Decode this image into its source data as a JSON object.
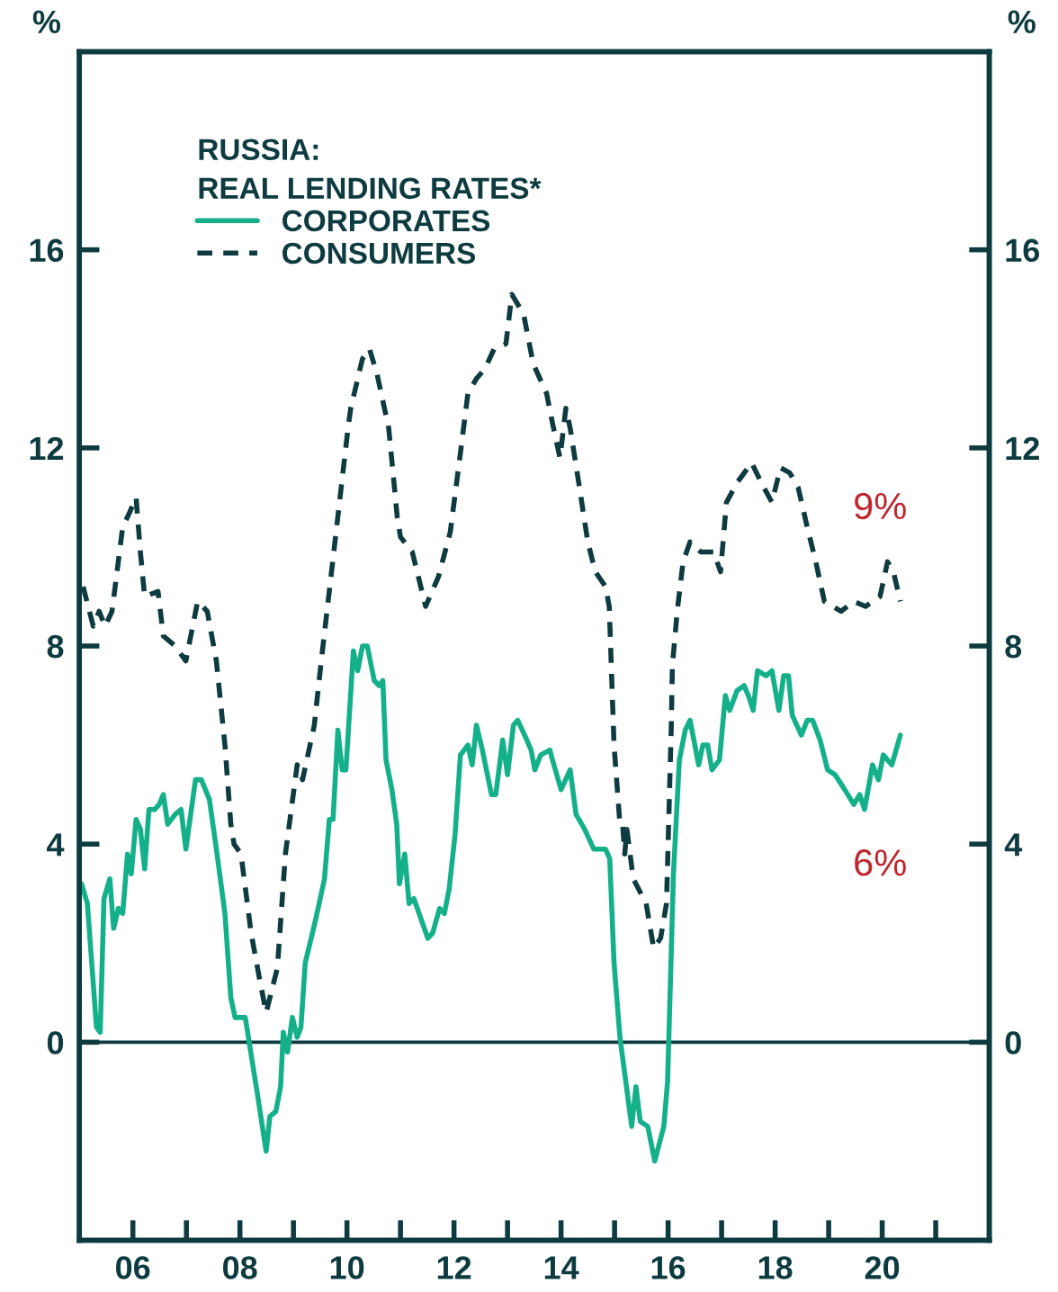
{
  "chart_data": {
    "type": "line",
    "legend_title": "RUSSIA:\nREAL LENDING RATES*",
    "ylabel": "%",
    "y2label": "%",
    "xlim": [
      2005,
      2022
    ],
    "ylim": [
      -4,
      20
    ],
    "y2lim": [
      -4,
      20
    ],
    "xticks": [
      {
        "value": 2006,
        "label": "06"
      },
      {
        "value": 2007,
        "label": null
      },
      {
        "value": 2008,
        "label": "08"
      },
      {
        "value": 2009,
        "label": null
      },
      {
        "value": 2010,
        "label": "10"
      },
      {
        "value": 2011,
        "label": null
      },
      {
        "value": 2012,
        "label": "12"
      },
      {
        "value": 2013,
        "label": null
      },
      {
        "value": 2014,
        "label": "14"
      },
      {
        "value": 2015,
        "label": null
      },
      {
        "value": 2016,
        "label": "16"
      },
      {
        "value": 2017,
        "label": null
      },
      {
        "value": 2018,
        "label": "18"
      },
      {
        "value": 2019,
        "label": null
      },
      {
        "value": 2020,
        "label": "20"
      },
      {
        "value": 2021,
        "label": null
      }
    ],
    "yticks": [
      0,
      4,
      8,
      12,
      16
    ],
    "y2ticks": [
      0,
      4,
      8,
      12,
      16
    ],
    "ref_lines": [
      {
        "axis": "y",
        "value": 0,
        "color": "#0d3b3f"
      }
    ],
    "annotations": [
      "9%",
      "6%"
    ],
    "legend": "top left",
    "grid": false,
    "series": [
      {
        "name": "CORPORATES",
        "color": "#14b08a",
        "line_style": "solid",
        "x": [
          2005.04,
          2005.15,
          2005.32,
          2005.39,
          2005.46,
          2005.57,
          2005.64,
          2005.73,
          2005.81,
          2005.9,
          2005.97,
          2006.06,
          2006.14,
          2006.22,
          2006.3,
          2006.41,
          2006.49,
          2006.57,
          2006.65,
          2006.79,
          2006.9,
          2006.99,
          2007.17,
          2007.28,
          2007.43,
          2007.56,
          2007.72,
          2007.83,
          2007.91,
          2008.1,
          2008.32,
          2008.49,
          2008.56,
          2008.67,
          2008.76,
          2008.81,
          2008.89,
          2008.98,
          2009.07,
          2009.14,
          2009.22,
          2009.42,
          2009.58,
          2009.67,
          2009.74,
          2009.83,
          2009.91,
          2009.98,
          2010.12,
          2010.2,
          2010.29,
          2010.38,
          2010.51,
          2010.6,
          2010.67,
          2010.73,
          2010.84,
          2010.93,
          2010.98,
          2011.08,
          2011.16,
          2011.25,
          2011.38,
          2011.51,
          2011.6,
          2011.73,
          2011.82,
          2011.91,
          2012.02,
          2012.12,
          2012.26,
          2012.34,
          2012.42,
          2012.53,
          2012.7,
          2012.78,
          2012.91,
          2013.0,
          2013.11,
          2013.19,
          2013.32,
          2013.44,
          2013.51,
          2013.62,
          2013.79,
          2013.84,
          2014.0,
          2014.17,
          2014.28,
          2014.44,
          2014.61,
          2014.66,
          2014.83,
          2014.91,
          2014.99,
          2015.1,
          2015.21,
          2015.32,
          2015.4,
          2015.48,
          2015.62,
          2015.75,
          2015.92,
          2015.99,
          2016.03,
          2016.1,
          2016.21,
          2016.32,
          2016.41,
          2016.5,
          2016.57,
          2016.65,
          2016.74,
          2016.82,
          2016.96,
          2017.07,
          2017.15,
          2017.29,
          2017.42,
          2017.5,
          2017.59,
          2017.67,
          2017.83,
          2017.94,
          2018.07,
          2018.16,
          2018.25,
          2018.32,
          2018.49,
          2018.6,
          2018.7,
          2018.84,
          2018.98,
          2019.12,
          2019.3,
          2019.47,
          2019.58,
          2019.67,
          2019.82,
          2019.93,
          2020.02,
          2020.18,
          2020.34
        ],
        "values": [
          3.2,
          2.8,
          0.3,
          0.2,
          2.9,
          3.3,
          2.3,
          2.7,
          2.6,
          3.8,
          3.4,
          4.5,
          4.3,
          3.5,
          4.7,
          4.7,
          4.8,
          5.0,
          4.4,
          4.6,
          4.7,
          3.9,
          5.3,
          5.3,
          4.9,
          3.9,
          2.6,
          0.9,
          0.5,
          0.5,
          -1.0,
          -2.2,
          -1.5,
          -1.4,
          -0.9,
          0.2,
          -0.2,
          0.5,
          0.1,
          0.3,
          1.6,
          2.5,
          3.3,
          4.5,
          4.5,
          6.3,
          5.5,
          5.5,
          7.9,
          7.5,
          8.0,
          8.0,
          7.3,
          7.2,
          7.3,
          5.7,
          5.1,
          4.4,
          3.2,
          3.8,
          2.8,
          2.9,
          2.5,
          2.1,
          2.2,
          2.7,
          2.6,
          3.1,
          4.2,
          5.8,
          6.0,
          5.6,
          6.4,
          5.9,
          5.0,
          5.0,
          6.1,
          5.4,
          6.4,
          6.5,
          6.2,
          5.9,
          5.5,
          5.8,
          5.9,
          5.7,
          5.1,
          5.5,
          4.6,
          4.3,
          3.9,
          3.9,
          3.9,
          3.7,
          1.6,
          0.1,
          -0.8,
          -1.7,
          -0.9,
          -1.6,
          -1.7,
          -2.4,
          -1.7,
          -0.8,
          0.7,
          3.4,
          5.7,
          6.3,
          6.5,
          6.0,
          5.6,
          6.0,
          6.0,
          5.5,
          5.7,
          7.0,
          6.7,
          7.1,
          7.2,
          7.0,
          6.7,
          7.5,
          7.4,
          7.5,
          6.7,
          7.4,
          7.4,
          6.6,
          6.2,
          6.5,
          6.5,
          6.1,
          5.5,
          5.4,
          5.1,
          4.8,
          5.0,
          4.7,
          5.6,
          5.3,
          5.8,
          5.6,
          6.2
        ]
      },
      {
        "name": "CONSUMERS",
        "color": "#0d3b3f",
        "line_style": "dashed",
        "x": [
          2005.07,
          2005.26,
          2005.37,
          2005.48,
          2005.61,
          2005.81,
          2005.94,
          2006.06,
          2006.14,
          2006.22,
          2006.47,
          2006.57,
          2006.79,
          2006.99,
          2007.21,
          2007.39,
          2007.56,
          2007.72,
          2007.83,
          2007.89,
          2008.02,
          2008.21,
          2008.38,
          2008.49,
          2008.7,
          2008.85,
          2009.07,
          2009.17,
          2009.39,
          2009.52,
          2009.85,
          2010.02,
          2010.07,
          2010.29,
          2010.42,
          2010.56,
          2010.78,
          2010.94,
          2011.0,
          2011.22,
          2011.47,
          2011.71,
          2011.93,
          2012.12,
          2012.26,
          2012.42,
          2012.58,
          2012.75,
          2012.97,
          2013.08,
          2013.3,
          2013.48,
          2013.73,
          2013.84,
          2013.98,
          2014.09,
          2014.17,
          2014.33,
          2014.5,
          2014.64,
          2014.83,
          2014.9,
          2014.99,
          2015.1,
          2015.15,
          2015.19,
          2015.23,
          2015.35,
          2015.59,
          2015.73,
          2015.86,
          2015.97,
          2016.06,
          2016.08,
          2016.17,
          2016.28,
          2016.41,
          2016.61,
          2016.85,
          2016.98,
          2017.09,
          2017.29,
          2017.56,
          2017.74,
          2017.94,
          2018.1,
          2018.27,
          2018.43,
          2018.6,
          2018.76,
          2018.92,
          2019.23,
          2019.47,
          2019.69,
          2019.96,
          2020.1,
          2020.21,
          2020.34
        ],
        "values": [
          9.2,
          8.4,
          8.7,
          8.4,
          8.7,
          10.4,
          10.7,
          11.0,
          9.9,
          9.0,
          9.1,
          8.2,
          8.0,
          7.7,
          8.9,
          8.7,
          7.7,
          6.0,
          4.4,
          4.0,
          3.8,
          2.2,
          1.2,
          0.6,
          1.5,
          3.8,
          5.6,
          5.3,
          6.4,
          7.7,
          10.8,
          12.4,
          12.8,
          13.8,
          14.0,
          13.5,
          12.4,
          10.6,
          10.2,
          9.9,
          8.8,
          9.4,
          10.3,
          11.9,
          13.1,
          13.4,
          13.6,
          14.0,
          14.1,
          15.1,
          14.7,
          13.7,
          13.1,
          12.5,
          11.8,
          12.8,
          12.4,
          11.3,
          10.1,
          9.5,
          9.2,
          8.8,
          6.0,
          4.4,
          4.4,
          3.8,
          4.3,
          3.3,
          2.8,
          1.9,
          2.1,
          2.8,
          6.4,
          7.6,
          8.7,
          9.7,
          10.1,
          9.9,
          9.9,
          9.5,
          10.9,
          11.3,
          11.7,
          11.3,
          10.9,
          11.6,
          11.5,
          11.2,
          10.4,
          9.7,
          8.9,
          8.7,
          8.9,
          8.8,
          9.0,
          9.7,
          9.5,
          8.9
        ]
      }
    ]
  }
}
